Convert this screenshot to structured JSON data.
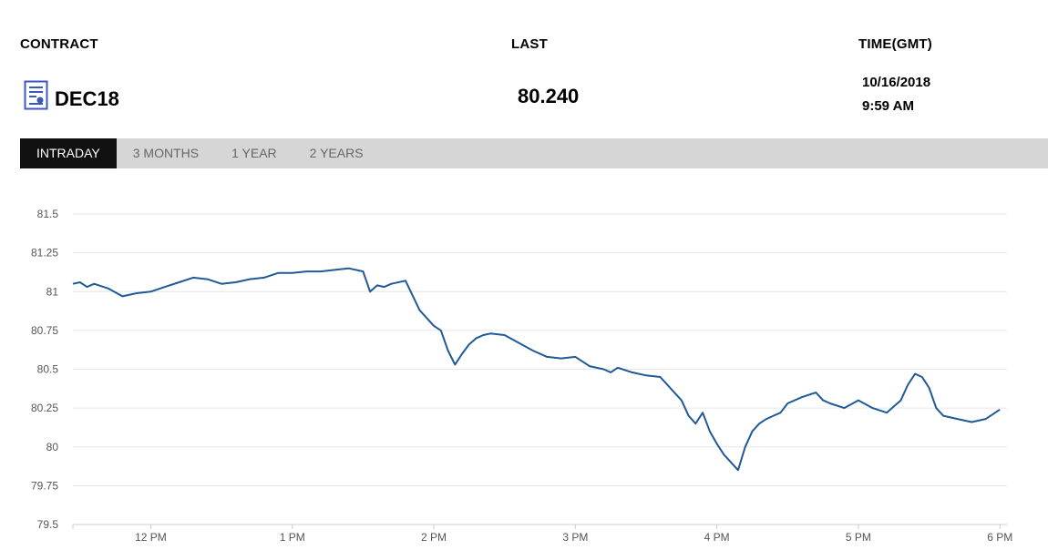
{
  "header": {
    "contract_label": "CONTRACT",
    "last_label": "LAST",
    "time_label": "TIME(GMT)"
  },
  "quote": {
    "contract": "DEC18",
    "last": "80.240",
    "date": "10/16/2018",
    "time": "9:59 AM"
  },
  "tabs": [
    {
      "label": "INTRADAY",
      "active": true
    },
    {
      "label": "3 MONTHS",
      "active": false
    },
    {
      "label": "1 YEAR",
      "active": false
    },
    {
      "label": "2 YEARS",
      "active": false
    }
  ],
  "colors": {
    "line": "#1f5a96",
    "tab_bar": "#d6d6d6",
    "tab_active": "#111111",
    "icon": "#3b57c4"
  },
  "icons": {
    "contract": "document-chart-icon"
  },
  "chart_data": {
    "type": "line",
    "ylim": [
      79.5,
      81.5
    ],
    "yticks": [
      "81.5",
      "81.25",
      "81",
      "80.75",
      "80.5",
      "80.25",
      "80",
      "79.75",
      "79.5"
    ],
    "ytick_values": [
      81.5,
      81.25,
      81,
      80.75,
      80.5,
      80.25,
      80,
      79.75,
      79.5
    ],
    "xlim": [
      11.45,
      18.05
    ],
    "xtick_values": [
      11.45,
      12,
      13,
      14,
      15,
      16,
      17,
      18
    ],
    "xticks": [
      "",
      "12 PM",
      "1 PM",
      "2 PM",
      "3 PM",
      "4 PM",
      "5 PM",
      "6 PM"
    ],
    "grid": true,
    "series": [
      {
        "x": [
          11.45,
          11.5,
          11.55,
          11.6,
          11.7,
          11.8,
          11.9,
          12.0,
          12.1,
          12.2,
          12.3,
          12.4,
          12.5,
          12.6,
          12.7,
          12.8,
          12.9,
          13.0,
          13.1,
          13.2,
          13.3,
          13.4,
          13.5,
          13.55,
          13.6,
          13.65,
          13.7,
          13.8,
          13.9,
          14.0,
          14.05,
          14.1,
          14.15,
          14.2,
          14.25,
          14.3,
          14.35,
          14.4,
          14.5,
          14.6,
          14.7,
          14.8,
          14.9,
          15.0,
          15.1,
          15.2,
          15.25,
          15.3,
          15.4,
          15.5,
          15.6,
          15.7,
          15.75,
          15.8,
          15.85,
          15.9,
          15.95,
          16.0,
          16.05,
          16.1,
          16.15,
          16.2,
          16.25,
          16.3,
          16.35,
          16.4,
          16.45,
          16.5,
          16.6,
          16.7,
          16.75,
          16.8,
          16.9,
          17.0,
          17.1,
          17.2,
          17.3,
          17.35,
          17.4,
          17.45,
          17.5,
          17.55,
          17.6,
          17.7,
          17.8,
          17.9,
          18.0
        ],
        "y": [
          81.05,
          81.06,
          81.03,
          81.05,
          81.02,
          80.97,
          80.99,
          81.0,
          81.03,
          81.06,
          81.09,
          81.08,
          81.05,
          81.06,
          81.08,
          81.09,
          81.12,
          81.12,
          81.13,
          81.13,
          81.14,
          81.15,
          81.13,
          81.0,
          81.04,
          81.03,
          81.05,
          81.07,
          80.88,
          80.78,
          80.75,
          80.62,
          80.53,
          80.6,
          80.66,
          80.7,
          80.72,
          80.73,
          80.72,
          80.67,
          80.62,
          80.58,
          80.57,
          80.58,
          80.52,
          80.5,
          80.48,
          80.51,
          80.48,
          80.46,
          80.45,
          80.35,
          80.3,
          80.2,
          80.15,
          80.22,
          80.1,
          80.02,
          79.95,
          79.9,
          79.85,
          80.0,
          80.1,
          80.15,
          80.18,
          80.2,
          80.22,
          80.28,
          80.32,
          80.35,
          80.3,
          80.28,
          80.25,
          80.3,
          80.25,
          80.22,
          80.3,
          80.4,
          80.47,
          80.45,
          80.38,
          80.25,
          80.2,
          80.18,
          80.16,
          80.18,
          80.24
        ]
      }
    ]
  }
}
